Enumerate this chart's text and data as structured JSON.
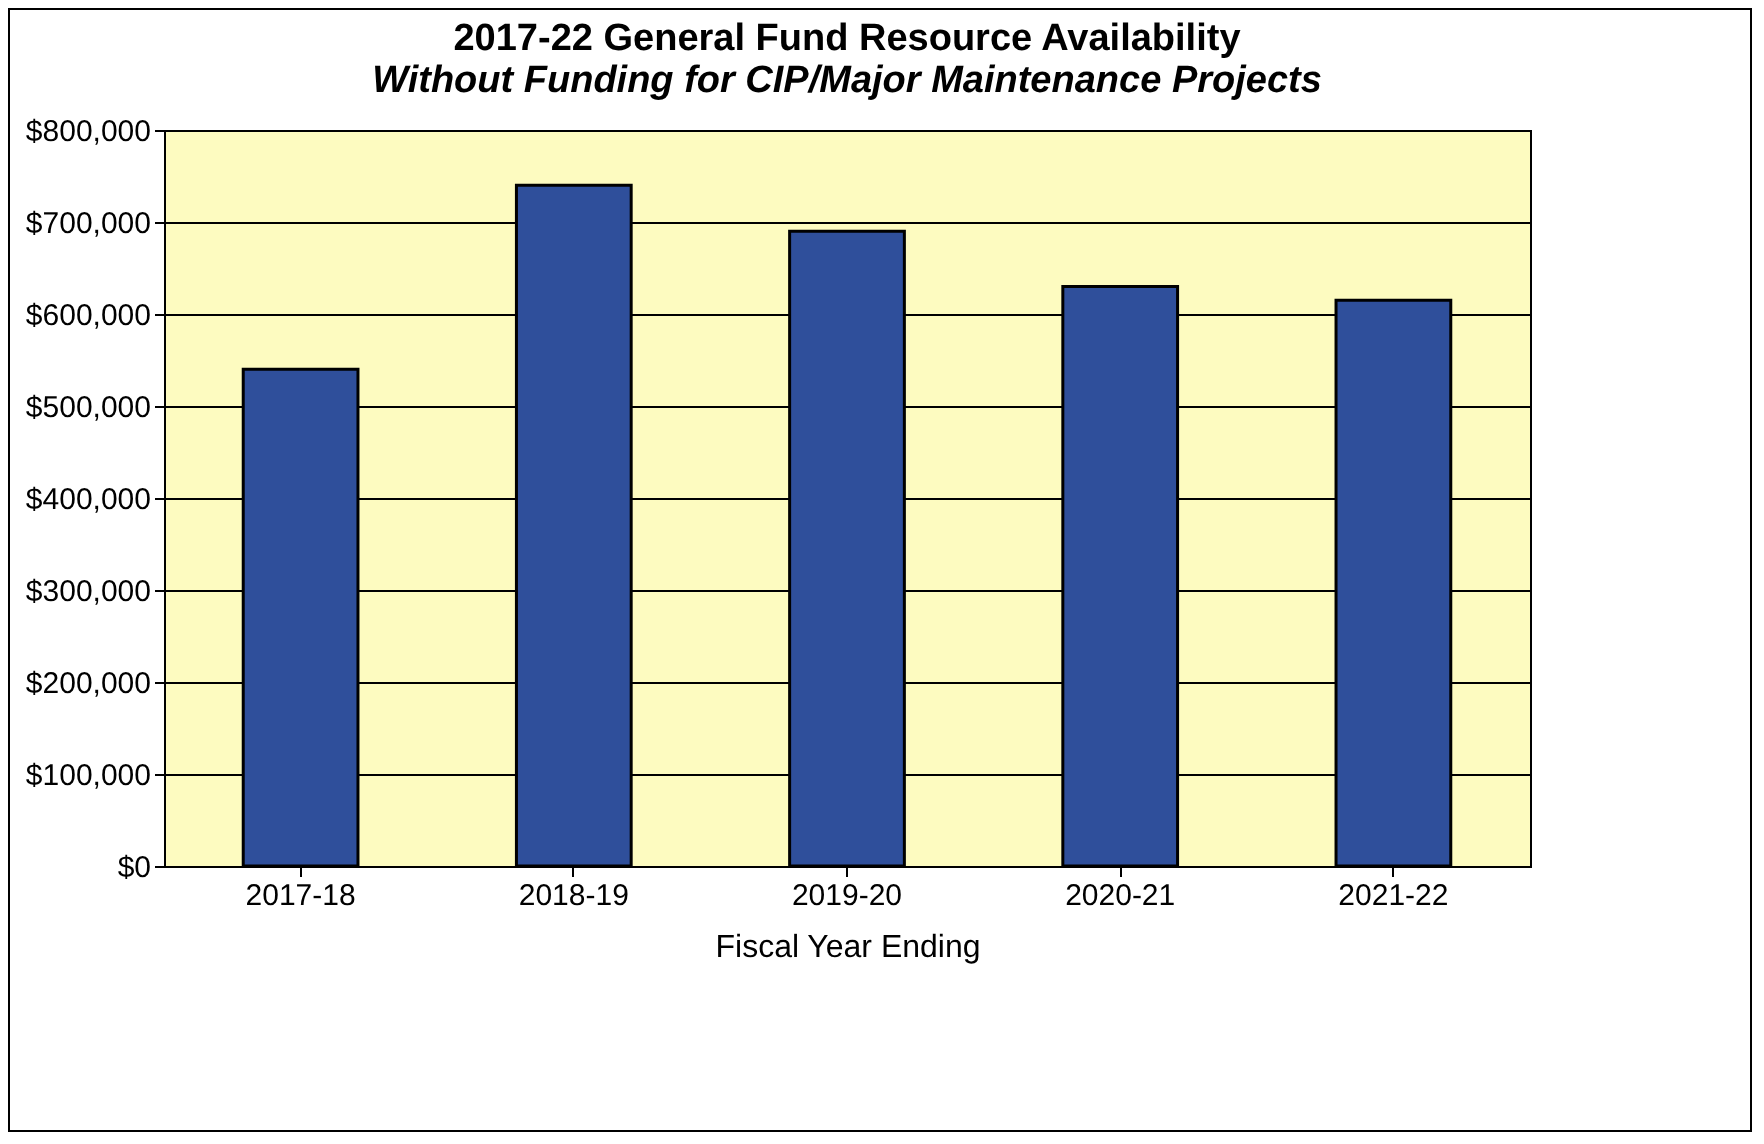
{
  "chart_data": {
    "type": "bar",
    "title": "2017-22  General Fund Resource Availability",
    "subtitle": "Without Funding for CIP/Major  Maintenance Projects",
    "xlabel": "Fiscal Year Ending",
    "categories": [
      "2017-18",
      "2018-19",
      "2019-20",
      "2020-21",
      "2021-22"
    ],
    "values": [
      540000,
      740000,
      690000,
      630000,
      615000
    ],
    "color": "#2f4f9b",
    "ylim": [
      0,
      800000
    ],
    "yticks": [
      {
        "value": 0,
        "label": "$0"
      },
      {
        "value": 100000,
        "label": "$100,000"
      },
      {
        "value": 200000,
        "label": "$200,000"
      },
      {
        "value": 300000,
        "label": "$300,000"
      },
      {
        "value": 400000,
        "label": "$400,000"
      },
      {
        "value": 500000,
        "label": "$500,000"
      },
      {
        "value": 600000,
        "label": "$600,000"
      },
      {
        "value": 700000,
        "label": "$700,000"
      },
      {
        "value": 800000,
        "label": "$800,000"
      }
    ],
    "grid": "y"
  }
}
